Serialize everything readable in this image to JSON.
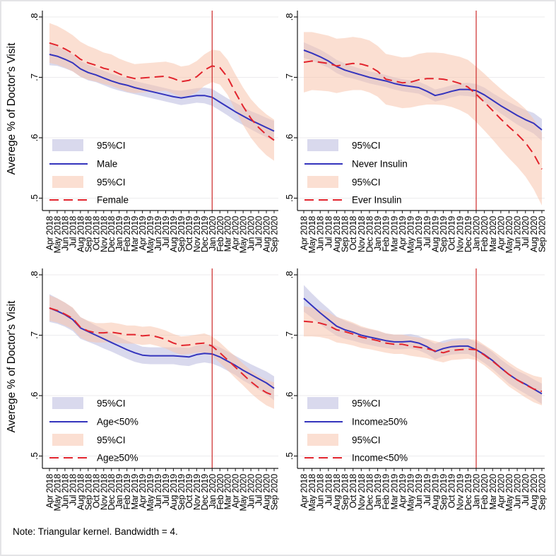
{
  "figure": {
    "ylabel": "Averege % of Doctor's Visit",
    "note": "Note: Triangular kernel. Bandwidth = 4."
  },
  "axes": {
    "ytick_labels": [
      ".5",
      ".6",
      ".7",
      ".8"
    ],
    "ytick_values": [
      0.5,
      0.6,
      0.7,
      0.8
    ],
    "ylim": [
      0.48,
      0.81
    ],
    "months": [
      "Apr 2018",
      "May 2018",
      "Jun 2018",
      "Jul 2018",
      "Aug 2018",
      "Sep 2018",
      "Oct 2018",
      "Nov 2018",
      "Dec 2018",
      "Jan 2019",
      "Feb 2019",
      "Mar 2019",
      "Apr 2019",
      "May 2019",
      "Jun 2019",
      "Jul 2019",
      "Aug 2019",
      "Sep 2019",
      "Oct 2019",
      "Nov 2019",
      "Dec 2019",
      "Jan 2020",
      "Feb 2020",
      "Mar 2020",
      "Apr 2020",
      "May 2020",
      "Jun 2020",
      "Jul 2020",
      "Aug 2020",
      "Sep 2020"
    ],
    "vline_month": "Jan 2020",
    "vline_index": 21,
    "grid": true,
    "legend_position": "inside-lower-left"
  },
  "colors": {
    "blue_line": "#3434bd",
    "red_line": "#e2242d",
    "blue_band": "#babade",
    "red_band": "#f8c5ad",
    "band_opacity": 0.55,
    "vline": "#cc2a2a",
    "grid": "#ecebee",
    "axis": "#1a1a1a",
    "text": "#000000"
  },
  "legend": {
    "ci_label": "95%CI"
  },
  "chart_data": [
    {
      "type": "line",
      "title": "",
      "position": "top-left",
      "ylabel": "Averege % of Doctor's Visit",
      "legend": [
        "95%CI",
        "Male",
        "95%CI",
        "Female"
      ],
      "series": [
        {
          "name": "Male",
          "style": "solid",
          "color": "blue",
          "values": [
            0.738,
            0.735,
            0.73,
            0.724,
            0.714,
            0.708,
            0.704,
            0.699,
            0.694,
            0.69,
            0.687,
            0.683,
            0.68,
            0.677,
            0.674,
            0.671,
            0.668,
            0.666,
            0.668,
            0.67,
            0.67,
            0.667,
            0.659,
            0.651,
            0.643,
            0.636,
            0.629,
            0.623,
            0.617,
            0.611
          ],
          "ci_halfwidth": [
            0.018,
            0.016,
            0.015,
            0.014,
            0.013,
            0.013,
            0.012,
            0.012,
            0.012,
            0.012,
            0.012,
            0.011,
            0.011,
            0.011,
            0.011,
            0.011,
            0.011,
            0.012,
            0.012,
            0.012,
            0.013,
            0.014,
            0.014,
            0.014,
            0.015,
            0.015,
            0.015,
            0.016,
            0.016,
            0.017
          ]
        },
        {
          "name": "Female",
          "style": "dashed",
          "color": "red",
          "values": [
            0.757,
            0.753,
            0.747,
            0.74,
            0.73,
            0.724,
            0.72,
            0.715,
            0.712,
            0.706,
            0.701,
            0.698,
            0.699,
            0.7,
            0.701,
            0.702,
            0.698,
            0.693,
            0.695,
            0.701,
            0.712,
            0.719,
            0.716,
            0.7,
            0.675,
            0.652,
            0.632,
            0.617,
            0.605,
            0.596
          ],
          "ci_halfwidth": [
            0.033,
            0.032,
            0.031,
            0.03,
            0.029,
            0.028,
            0.027,
            0.026,
            0.026,
            0.025,
            0.025,
            0.024,
            0.024,
            0.024,
            0.024,
            0.024,
            0.025,
            0.025,
            0.025,
            0.026,
            0.026,
            0.027,
            0.028,
            0.029,
            0.03,
            0.031,
            0.032,
            0.033,
            0.034,
            0.034
          ]
        }
      ]
    },
    {
      "type": "line",
      "title": "",
      "position": "top-right",
      "ylabel": "",
      "legend": [
        "95%CI",
        "Never Insulin",
        "95%CI",
        "Ever Insulin"
      ],
      "series": [
        {
          "name": "Never Insulin",
          "style": "solid",
          "color": "blue",
          "values": [
            0.745,
            0.74,
            0.734,
            0.727,
            0.718,
            0.712,
            0.708,
            0.704,
            0.7,
            0.697,
            0.694,
            0.69,
            0.687,
            0.685,
            0.683,
            0.677,
            0.67,
            0.673,
            0.677,
            0.68,
            0.68,
            0.678,
            0.671,
            0.662,
            0.653,
            0.645,
            0.637,
            0.63,
            0.624,
            0.613
          ],
          "ci_halfwidth": [
            0.013,
            0.012,
            0.012,
            0.011,
            0.011,
            0.011,
            0.01,
            0.01,
            0.01,
            0.01,
            0.01,
            0.01,
            0.01,
            0.01,
            0.01,
            0.01,
            0.01,
            0.01,
            0.01,
            0.01,
            0.011,
            0.011,
            0.012,
            0.012,
            0.013,
            0.014,
            0.015,
            0.016,
            0.017,
            0.018
          ]
        },
        {
          "name": "Ever Insulin",
          "style": "dashed",
          "color": "red",
          "values": [
            0.725,
            0.727,
            0.725,
            0.723,
            0.719,
            0.721,
            0.723,
            0.722,
            0.718,
            0.71,
            0.697,
            0.694,
            0.691,
            0.692,
            0.696,
            0.698,
            0.698,
            0.697,
            0.694,
            0.69,
            0.684,
            0.672,
            0.659,
            0.645,
            0.631,
            0.618,
            0.606,
            0.592,
            0.573,
            0.548
          ],
          "ci_halfwidth": [
            0.05,
            0.048,
            0.047,
            0.046,
            0.045,
            0.044,
            0.044,
            0.043,
            0.043,
            0.042,
            0.042,
            0.042,
            0.042,
            0.042,
            0.043,
            0.043,
            0.043,
            0.043,
            0.043,
            0.044,
            0.045,
            0.046,
            0.047,
            0.048,
            0.05,
            0.052,
            0.054,
            0.056,
            0.058,
            0.06
          ]
        }
      ]
    },
    {
      "type": "line",
      "title": "",
      "position": "bottom-left",
      "ylabel": "Averege % of Doctor's Visit",
      "legend": [
        "95%CI",
        "Age<50%",
        "95%CI",
        "Age≥50%"
      ],
      "series": [
        {
          "name": "Age<50%",
          "style": "solid",
          "color": "blue",
          "values": [
            0.745,
            0.74,
            0.734,
            0.726,
            0.712,
            0.706,
            0.7,
            0.694,
            0.688,
            0.682,
            0.676,
            0.671,
            0.667,
            0.666,
            0.666,
            0.666,
            0.666,
            0.665,
            0.664,
            0.668,
            0.67,
            0.669,
            0.664,
            0.657,
            0.65,
            0.642,
            0.635,
            0.628,
            0.621,
            0.612
          ],
          "ci_halfwidth": [
            0.023,
            0.021,
            0.02,
            0.019,
            0.018,
            0.017,
            0.016,
            0.016,
            0.015,
            0.015,
            0.015,
            0.015,
            0.014,
            0.014,
            0.014,
            0.014,
            0.014,
            0.015,
            0.015,
            0.015,
            0.015,
            0.016,
            0.016,
            0.016,
            0.016,
            0.017,
            0.017,
            0.018,
            0.019,
            0.02
          ]
        },
        {
          "name": "Age≥50%",
          "style": "dashed",
          "color": "red",
          "values": [
            0.745,
            0.741,
            0.735,
            0.728,
            0.713,
            0.707,
            0.704,
            0.704,
            0.705,
            0.703,
            0.701,
            0.701,
            0.699,
            0.7,
            0.697,
            0.693,
            0.687,
            0.683,
            0.684,
            0.686,
            0.687,
            0.682,
            0.671,
            0.659,
            0.647,
            0.635,
            0.623,
            0.613,
            0.605,
            0.6
          ],
          "ci_halfwidth": [
            0.021,
            0.02,
            0.019,
            0.018,
            0.017,
            0.017,
            0.016,
            0.016,
            0.016,
            0.016,
            0.015,
            0.015,
            0.015,
            0.015,
            0.015,
            0.015,
            0.015,
            0.015,
            0.015,
            0.015,
            0.016,
            0.016,
            0.017,
            0.017,
            0.018,
            0.018,
            0.019,
            0.02,
            0.021,
            0.022
          ]
        }
      ]
    },
    {
      "type": "line",
      "title": "",
      "position": "bottom-right",
      "ylabel": "",
      "legend": [
        "95%CI",
        "Income≥50%",
        "95%CI",
        "Income<50%"
      ],
      "series": [
        {
          "name": "Income≥50%",
          "style": "solid",
          "color": "blue",
          "values": [
            0.761,
            0.749,
            0.737,
            0.726,
            0.715,
            0.709,
            0.705,
            0.7,
            0.697,
            0.694,
            0.691,
            0.689,
            0.689,
            0.69,
            0.687,
            0.681,
            0.673,
            0.678,
            0.681,
            0.682,
            0.682,
            0.676,
            0.668,
            0.658,
            0.646,
            0.635,
            0.626,
            0.619,
            0.611,
            0.603
          ],
          "ci_halfwidth": [
            0.022,
            0.02,
            0.019,
            0.018,
            0.016,
            0.015,
            0.014,
            0.013,
            0.013,
            0.013,
            0.012,
            0.012,
            0.012,
            0.012,
            0.012,
            0.012,
            0.013,
            0.013,
            0.013,
            0.013,
            0.013,
            0.013,
            0.014,
            0.014,
            0.014,
            0.015,
            0.015,
            0.016,
            0.016,
            0.017
          ]
        },
        {
          "name": "Income<50%",
          "style": "dashed",
          "color": "red",
          "values": [
            0.723,
            0.722,
            0.72,
            0.716,
            0.709,
            0.706,
            0.702,
            0.697,
            0.694,
            0.691,
            0.687,
            0.685,
            0.685,
            0.682,
            0.68,
            0.678,
            0.674,
            0.671,
            0.675,
            0.676,
            0.677,
            0.676,
            0.667,
            0.657,
            0.646,
            0.635,
            0.626,
            0.618,
            0.611,
            0.607
          ],
          "ci_halfwidth": [
            0.025,
            0.024,
            0.023,
            0.022,
            0.021,
            0.02,
            0.019,
            0.018,
            0.017,
            0.017,
            0.016,
            0.016,
            0.016,
            0.016,
            0.016,
            0.016,
            0.016,
            0.016,
            0.016,
            0.016,
            0.016,
            0.017,
            0.017,
            0.018,
            0.019,
            0.02,
            0.02,
            0.021,
            0.022,
            0.023
          ]
        }
      ]
    }
  ]
}
